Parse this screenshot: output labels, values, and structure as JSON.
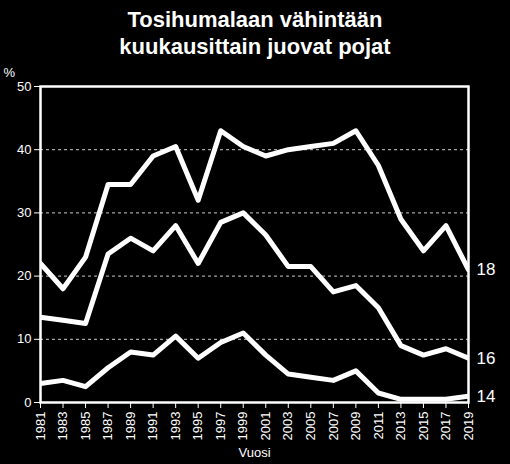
{
  "chart_data": {
    "type": "line",
    "title": "Tosihumalaan vähintään\nkuukausittain juovat pojat",
    "x_label": "Vuosi",
    "y_label": "%",
    "x": [
      1981,
      1983,
      1985,
      1987,
      1989,
      1991,
      1993,
      1995,
      1997,
      1999,
      2001,
      2003,
      2005,
      2007,
      2009,
      2011,
      2013,
      2015,
      2017,
      2019
    ],
    "series": [
      {
        "name": "18",
        "color": "#ffffff",
        "values": [
          22,
          18,
          23,
          34.5,
          34.5,
          39,
          40.5,
          32,
          43,
          40.5,
          39,
          40,
          40.5,
          41,
          43,
          37.5,
          29,
          24,
          28,
          21
        ]
      },
      {
        "name": "16",
        "color": "#ffffff",
        "values": [
          13.5,
          13,
          12.5,
          23.5,
          26,
          24,
          28,
          22,
          28.5,
          30,
          26.5,
          21.5,
          21.5,
          17.5,
          18.5,
          15,
          9,
          7.5,
          8.5,
          7
        ]
      },
      {
        "name": "14",
        "color": "#ffffff",
        "values": [
          3,
          3.5,
          2.5,
          5.5,
          8,
          7.5,
          10.5,
          7,
          9.5,
          11,
          7.5,
          4.5,
          4,
          3.5,
          5,
          1.5,
          0.5,
          0.5,
          0.5,
          1
        ]
      }
    ],
    "xlim": [
      1981,
      2019
    ],
    "ylim": [
      0,
      50
    ],
    "xticks": [
      1981,
      1983,
      1985,
      1987,
      1989,
      1991,
      1993,
      1995,
      1997,
      1999,
      2001,
      2003,
      2005,
      2007,
      2009,
      2011,
      2013,
      2015,
      2017,
      2019
    ],
    "yticks": [
      0,
      10,
      20,
      30,
      40,
      50
    ],
    "grid": true
  }
}
